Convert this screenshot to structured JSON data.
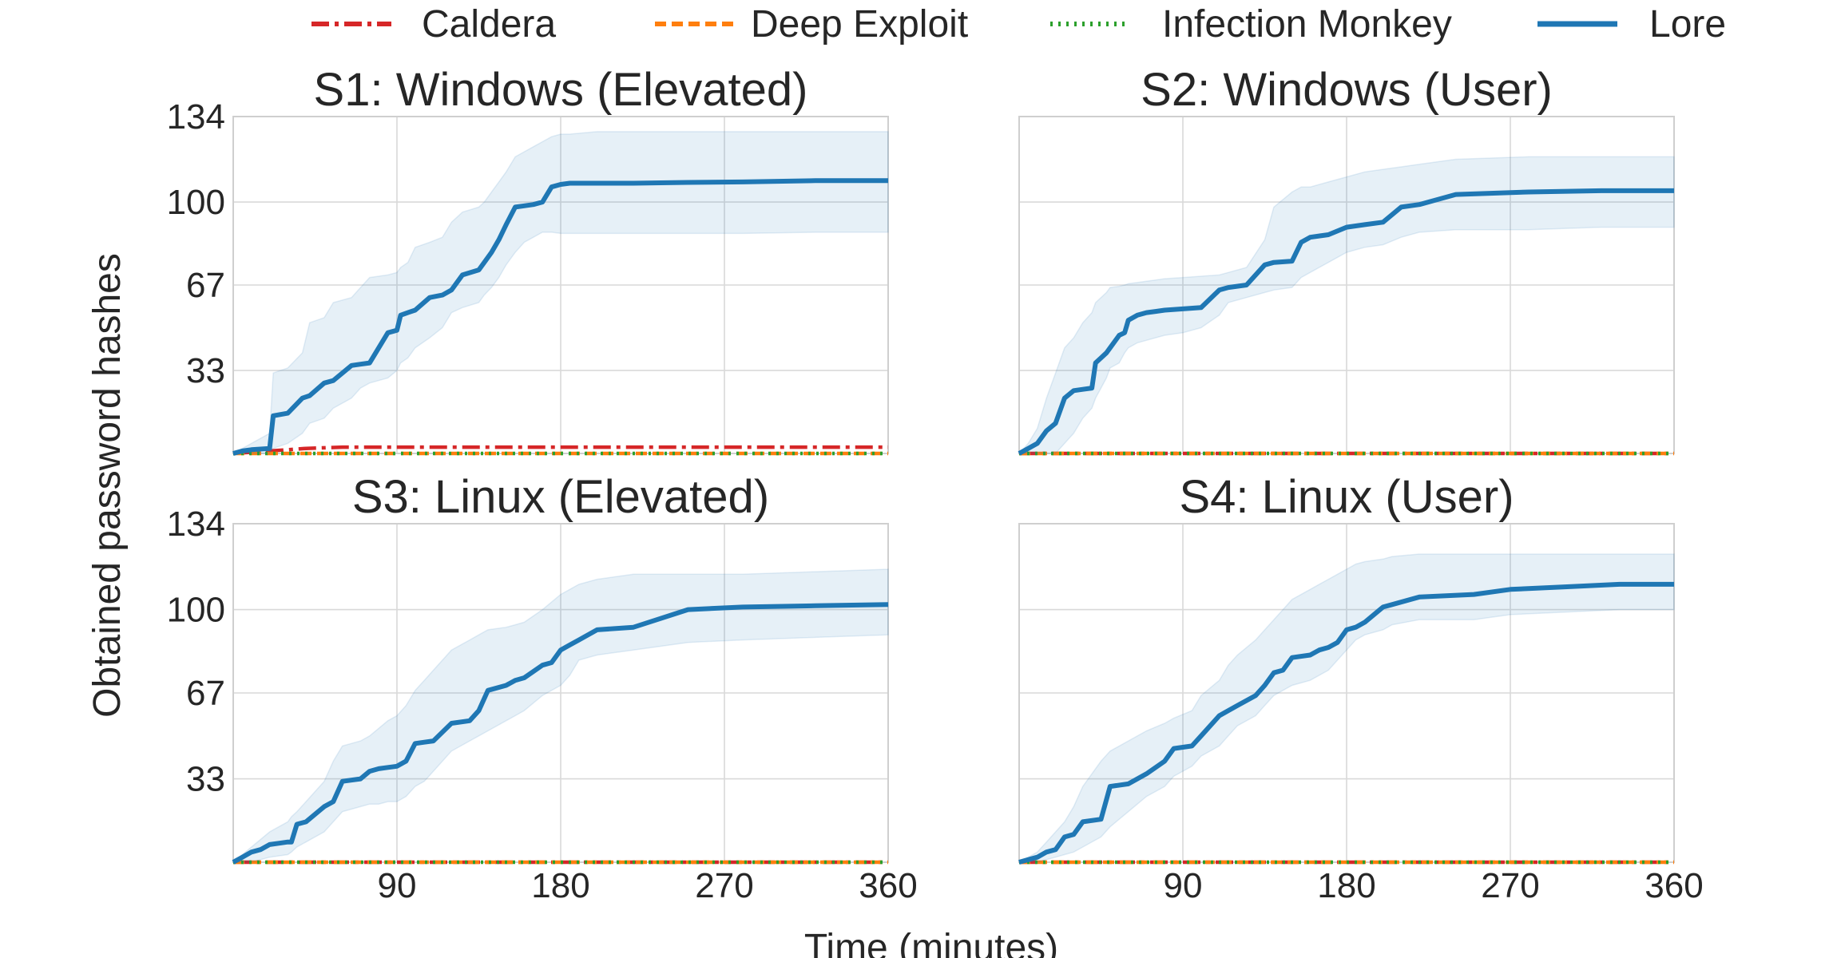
{
  "figure": {
    "xlabel": "Time (minutes)",
    "ylabel": "Obtained password hashes"
  },
  "legend": {
    "placement": "top-center",
    "entries": [
      {
        "name": "Caldera",
        "color": "#d62728",
        "style": "dashdot"
      },
      {
        "name": "Deep Exploit",
        "color": "#ff7f0e",
        "style": "dashed"
      },
      {
        "name": "Infection Monkey",
        "color": "#2ca02c",
        "style": "dotted"
      },
      {
        "name": "Lore",
        "color": "#1f77b4",
        "style": "solid"
      }
    ]
  },
  "chart_data": [
    {
      "type": "line",
      "title": "S1: Windows (Elevated)",
      "xlim": [
        0,
        360
      ],
      "ylim": [
        0,
        134
      ],
      "xticks": [
        90,
        180,
        270,
        360
      ],
      "yticks": [
        33,
        67,
        100,
        134
      ],
      "show_xtick_labels": false,
      "show_ytick_labels": true,
      "grid": true,
      "series": [
        {
          "name": "Lore",
          "color": "#1f77b4",
          "style": "solid",
          "x": [
            0,
            5,
            10,
            20,
            22,
            30,
            38,
            42,
            50,
            55,
            65,
            70,
            75,
            85,
            90,
            92,
            96,
            100,
            108,
            115,
            120,
            126,
            135,
            138,
            142,
            146,
            150,
            155,
            160,
            165,
            170,
            175,
            180,
            185,
            200,
            220,
            250,
            280,
            320,
            360
          ],
          "y": [
            0,
            1,
            1.5,
            2,
            15,
            16,
            22,
            23,
            28,
            29,
            35,
            35.5,
            36,
            48,
            49,
            55,
            56,
            57,
            62,
            63,
            65,
            71,
            73,
            76,
            80,
            85,
            91,
            98,
            98.5,
            99,
            100,
            106,
            107,
            107.5,
            107.5,
            107.5,
            107.8,
            108,
            108.5,
            108.5
          ],
          "upper": [
            0,
            2,
            4,
            8,
            32,
            34,
            40,
            52,
            54,
            60,
            62,
            66,
            70,
            71,
            72,
            74,
            76,
            82,
            84,
            86,
            92,
            96,
            98,
            100,
            104,
            108,
            112,
            118,
            120,
            122,
            124,
            126,
            127,
            127,
            128,
            128,
            128,
            128,
            128,
            128
          ],
          "lower": [
            0,
            0,
            0,
            0,
            2,
            4,
            8,
            12,
            14,
            18,
            22,
            26,
            28,
            30,
            33,
            36,
            38,
            42,
            46,
            50,
            56,
            58,
            60,
            63,
            66,
            70,
            75,
            80,
            84,
            86,
            88,
            88,
            87.5,
            87.5,
            87.5,
            87.5,
            87.5,
            87.5,
            88,
            88
          ]
        },
        {
          "name": "Caldera",
          "color": "#d62728",
          "style": "dashdot",
          "x": [
            0,
            20,
            40,
            60,
            360
          ],
          "y": [
            0,
            1,
            2,
            2.5,
            2.5
          ]
        },
        {
          "name": "Deep Exploit",
          "color": "#ff7f0e",
          "style": "dashed",
          "x": [
            0,
            360
          ],
          "y": [
            0,
            0
          ]
        },
        {
          "name": "Infection Monkey",
          "color": "#2ca02c",
          "style": "dotted",
          "x": [
            0,
            360
          ],
          "y": [
            0,
            0
          ]
        }
      ]
    },
    {
      "type": "line",
      "title": "S2: Windows (User)",
      "xlim": [
        0,
        360
      ],
      "ylim": [
        0,
        134
      ],
      "xticks": [
        90,
        180,
        270,
        360
      ],
      "yticks": [
        33,
        67,
        100,
        134
      ],
      "show_xtick_labels": false,
      "show_ytick_labels": false,
      "grid": true,
      "series": [
        {
          "name": "Lore",
          "color": "#1f77b4",
          "style": "solid",
          "x": [
            0,
            5,
            10,
            15,
            20,
            25,
            30,
            35,
            40,
            42,
            45,
            48,
            50,
            55,
            58,
            60,
            65,
            70,
            75,
            80,
            90,
            100,
            110,
            115,
            125,
            135,
            140,
            150,
            155,
            160,
            170,
            180,
            190,
            200,
            210,
            220,
            240,
            280,
            320,
            360
          ],
          "y": [
            0,
            2,
            4,
            9,
            12,
            22,
            25,
            25.5,
            26,
            36,
            38,
            40,
            42,
            47,
            48,
            53,
            55,
            56,
            56.5,
            57,
            57.5,
            58,
            65,
            66,
            67,
            75,
            76,
            76.5,
            84,
            86,
            87,
            90,
            91,
            92,
            98,
            99,
            103,
            104,
            104.5,
            104.5
          ],
          "upper": [
            0,
            4,
            10,
            22,
            32,
            42,
            46,
            52,
            56,
            60,
            62,
            64,
            66,
            66.5,
            67,
            67.5,
            68,
            68.5,
            69,
            69.5,
            70,
            70.5,
            71,
            72,
            74,
            85,
            98,
            104,
            106,
            106,
            108,
            110,
            112,
            113,
            114,
            115,
            117,
            118,
            118,
            118
          ],
          "lower": [
            0,
            0,
            0,
            0,
            0,
            4,
            8,
            14,
            18,
            22,
            26,
            30,
            34,
            36,
            40,
            42,
            44,
            45,
            46,
            47,
            48,
            50,
            55,
            60,
            62,
            64,
            65,
            66,
            70,
            72,
            76,
            80,
            82,
            83,
            86,
            88,
            89,
            89,
            90,
            90
          ]
        },
        {
          "name": "Caldera",
          "color": "#d62728",
          "style": "dashdot",
          "x": [
            0,
            360
          ],
          "y": [
            0,
            0
          ]
        },
        {
          "name": "Deep Exploit",
          "color": "#ff7f0e",
          "style": "dashed",
          "x": [
            0,
            360
          ],
          "y": [
            0,
            0
          ]
        },
        {
          "name": "Infection Monkey",
          "color": "#2ca02c",
          "style": "dotted",
          "x": [
            0,
            360
          ],
          "y": [
            0,
            0
          ]
        }
      ]
    },
    {
      "type": "line",
      "title": "S3: Linux (Elevated)",
      "xlim": [
        0,
        360
      ],
      "ylim": [
        0,
        134
      ],
      "xticks": [
        90,
        180,
        270,
        360
      ],
      "yticks": [
        33,
        67,
        100,
        134
      ],
      "show_xtick_labels": true,
      "show_ytick_labels": true,
      "grid": true,
      "series": [
        {
          "name": "Lore",
          "color": "#1f77b4",
          "style": "solid",
          "x": [
            0,
            5,
            10,
            15,
            20,
            25,
            30,
            32,
            35,
            40,
            50,
            55,
            60,
            70,
            75,
            80,
            85,
            90,
            95,
            100,
            105,
            110,
            120,
            130,
            135,
            140,
            150,
            155,
            160,
            170,
            175,
            180,
            185,
            190,
            200,
            220,
            250,
            280,
            320,
            360
          ],
          "y": [
            0,
            2,
            4,
            5,
            7,
            7.5,
            8,
            8,
            15,
            16,
            22,
            24,
            32,
            33,
            36,
            37,
            37.5,
            38,
            40,
            47,
            47.5,
            48,
            55,
            56,
            60,
            68,
            70,
            72,
            73,
            78,
            79,
            84,
            86,
            88,
            92,
            93,
            100,
            101,
            101.5,
            102
          ],
          "upper": [
            0,
            3,
            6,
            9,
            12,
            14,
            16,
            18,
            20,
            24,
            32,
            40,
            46,
            48,
            50,
            53,
            56,
            58,
            62,
            68,
            72,
            76,
            84,
            88,
            90,
            92,
            93,
            94,
            95,
            100,
            103,
            106,
            108,
            110,
            112,
            114,
            114,
            114,
            115,
            116
          ],
          "lower": [
            0,
            0,
            0,
            1,
            2,
            2.5,
            3,
            4,
            6,
            8,
            12,
            16,
            20,
            22,
            23,
            23,
            24,
            24,
            26,
            30,
            32,
            36,
            44,
            48,
            50,
            52,
            56,
            58,
            60,
            66,
            68,
            70,
            74,
            80,
            82,
            84,
            87,
            88,
            89,
            90
          ]
        },
        {
          "name": "Caldera",
          "color": "#d62728",
          "style": "dashdot",
          "x": [
            0,
            360
          ],
          "y": [
            0,
            0
          ]
        },
        {
          "name": "Deep Exploit",
          "color": "#ff7f0e",
          "style": "dashed",
          "x": [
            0,
            360
          ],
          "y": [
            0,
            0
          ]
        },
        {
          "name": "Infection Monkey",
          "color": "#2ca02c",
          "style": "dotted",
          "x": [
            0,
            360
          ],
          "y": [
            0,
            0
          ]
        }
      ]
    },
    {
      "type": "line",
      "title": "S4: Linux (User)",
      "xlim": [
        0,
        360
      ],
      "ylim": [
        0,
        134
      ],
      "xticks": [
        90,
        180,
        270,
        360
      ],
      "yticks": [
        33,
        67,
        100,
        134
      ],
      "show_xtick_labels": true,
      "show_ytick_labels": false,
      "grid": true,
      "series": [
        {
          "name": "Lore",
          "color": "#1f77b4",
          "style": "solid",
          "x": [
            0,
            5,
            10,
            15,
            20,
            25,
            30,
            35,
            45,
            50,
            60,
            70,
            80,
            85,
            95,
            100,
            110,
            115,
            120,
            130,
            135,
            140,
            145,
            150,
            160,
            165,
            170,
            175,
            180,
            185,
            190,
            200,
            205,
            220,
            250,
            270,
            300,
            330,
            360
          ],
          "y": [
            0,
            1,
            2,
            4,
            5,
            10,
            11,
            16,
            17,
            30,
            31,
            35,
            40,
            45,
            46,
            50,
            58,
            60,
            62,
            66,
            70,
            75,
            76,
            81,
            82,
            84,
            85,
            87,
            92,
            93,
            95,
            101,
            102,
            105,
            106,
            108,
            109,
            110,
            110
          ],
          "upper": [
            0,
            2,
            4,
            8,
            12,
            16,
            22,
            30,
            40,
            44,
            48,
            52,
            55,
            57,
            60,
            66,
            72,
            78,
            82,
            88,
            92,
            96,
            100,
            104,
            108,
            110,
            112,
            114,
            116,
            118,
            119,
            120,
            121,
            122,
            122,
            122,
            122,
            122,
            122
          ],
          "lower": [
            0,
            0,
            0,
            1,
            2,
            3,
            4,
            6,
            10,
            14,
            20,
            26,
            30,
            34,
            38,
            42,
            46,
            50,
            54,
            58,
            62,
            66,
            68,
            70,
            72,
            74,
            76,
            80,
            84,
            88,
            90,
            92,
            94,
            96,
            96,
            98,
            99,
            100,
            100
          ]
        },
        {
          "name": "Caldera",
          "color": "#d62728",
          "style": "dashdot",
          "x": [
            0,
            360
          ],
          "y": [
            0,
            0
          ]
        },
        {
          "name": "Deep Exploit",
          "color": "#ff7f0e",
          "style": "dashed",
          "x": [
            0,
            360
          ],
          "y": [
            0,
            0
          ]
        },
        {
          "name": "Infection Monkey",
          "color": "#2ca02c",
          "style": "dotted",
          "x": [
            0,
            360
          ],
          "y": [
            0,
            0
          ]
        }
      ]
    }
  ]
}
